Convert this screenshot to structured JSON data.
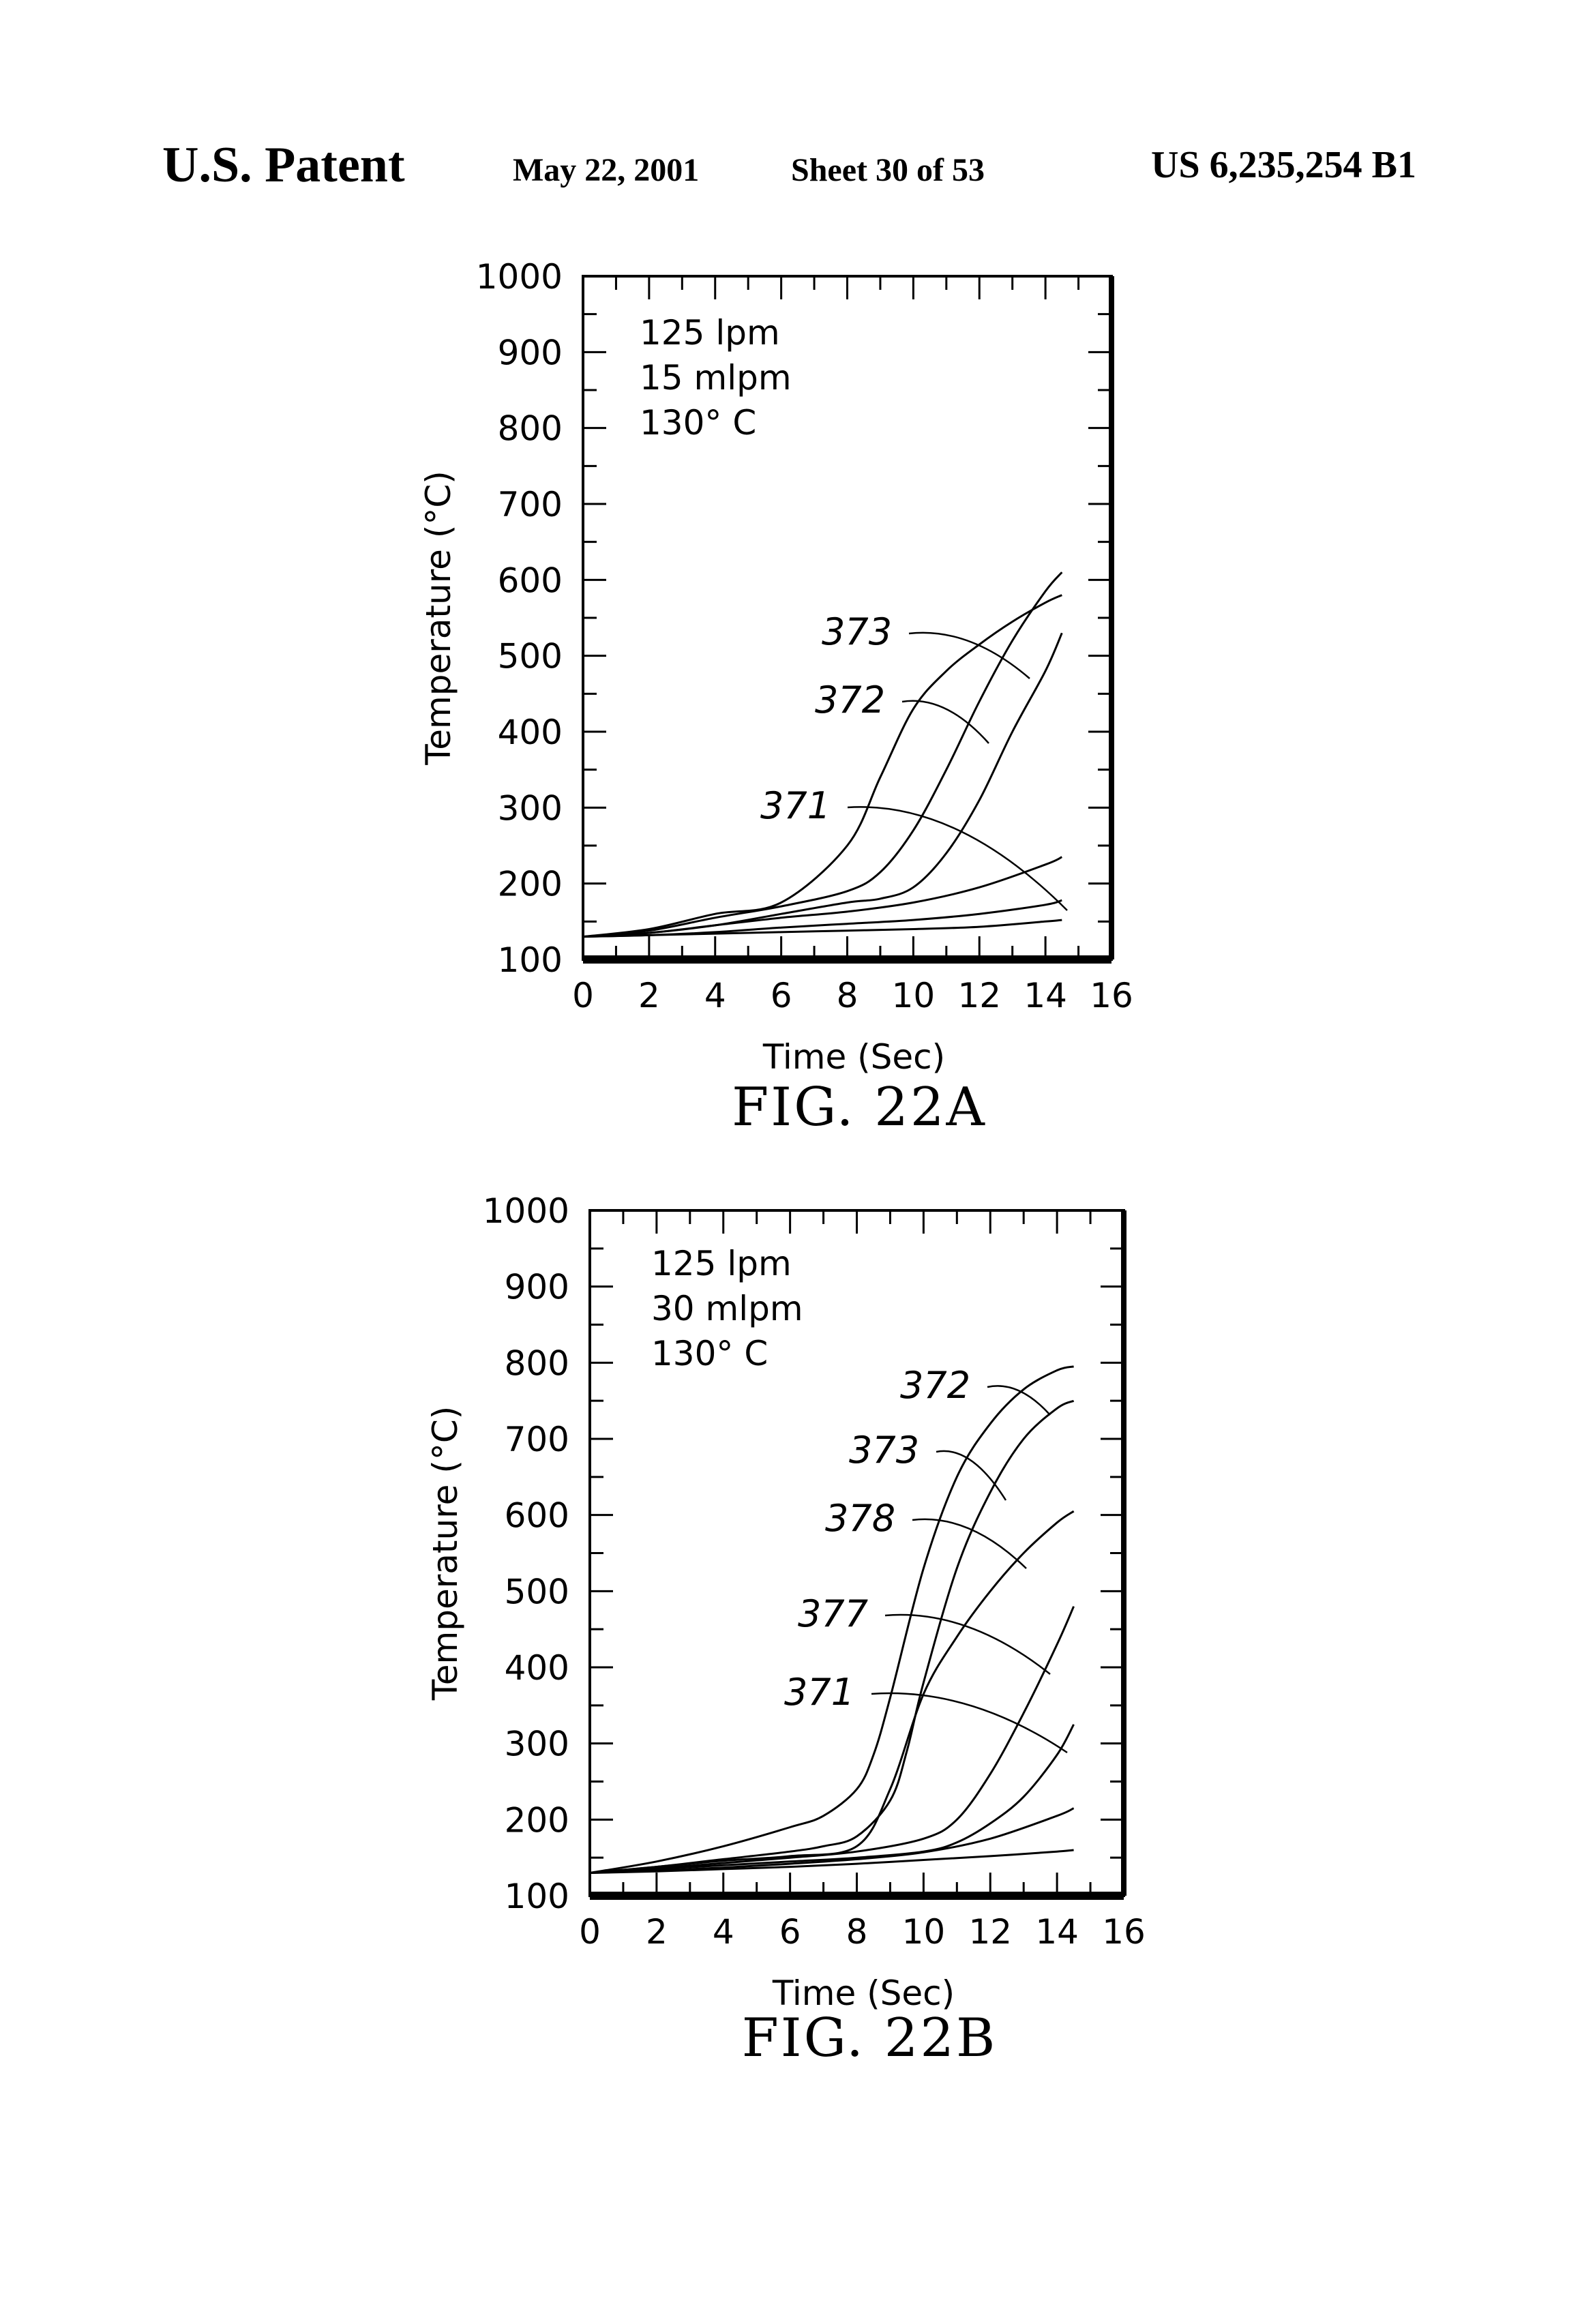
{
  "header": {
    "left": "U.S. Patent",
    "date": "May 22, 2001",
    "sheet": "Sheet 30 of 53",
    "number": "US 6,235,254 B1"
  },
  "chart_data": [
    {
      "type": "line",
      "figure_label": "FIG. 22A",
      "xlabel": "Time (Sec)",
      "ylabel": "Temperature (°C)",
      "xlim": [
        0,
        16
      ],
      "ylim": [
        100,
        1000
      ],
      "xticks": [
        "0",
        "2",
        "4",
        "6",
        "8",
        "10",
        "12",
        "14",
        "16"
      ],
      "yticks": [
        "100",
        "200",
        "300",
        "400",
        "500",
        "600",
        "700",
        "800",
        "900",
        "1000"
      ],
      "annotation_lines": [
        "125 lpm",
        "15 mlpm",
        "130° C"
      ],
      "curve_labels": [
        "373",
        "372",
        "371"
      ],
      "series": [
        {
          "x": [
            0,
            2,
            4,
            6,
            8,
            9,
            10,
            11,
            12,
            13,
            14,
            14.5
          ],
          "y": [
            130,
            140,
            160,
            175,
            250,
            340,
            430,
            480,
            515,
            545,
            570,
            580
          ]
        },
        {
          "x": [
            0,
            2,
            4,
            6,
            8,
            9,
            10,
            11,
            12,
            13,
            14,
            14.5
          ],
          "y": [
            130,
            138,
            155,
            170,
            190,
            215,
            270,
            350,
            440,
            520,
            585,
            610
          ]
        },
        {
          "x": [
            0,
            2,
            4,
            6,
            8,
            9,
            10,
            11,
            12,
            13,
            14,
            14.5
          ],
          "y": [
            130,
            135,
            145,
            160,
            175,
            180,
            195,
            240,
            310,
            400,
            480,
            530
          ]
        },
        {
          "x": [
            0,
            2,
            4,
            6,
            8,
            10,
            12,
            14,
            14.5
          ],
          "y": [
            130,
            135,
            145,
            155,
            163,
            175,
            195,
            225,
            235
          ]
        },
        {
          "x": [
            0,
            2,
            4,
            6,
            8,
            10,
            12,
            14,
            14.5
          ],
          "y": [
            130,
            132,
            136,
            142,
            147,
            152,
            160,
            172,
            178
          ]
        },
        {
          "x": [
            0,
            2,
            4,
            6,
            8,
            10,
            12,
            14,
            14.5
          ],
          "y": [
            130,
            132,
            134,
            136,
            138,
            140,
            143,
            150,
            152
          ]
        }
      ]
    },
    {
      "type": "line",
      "figure_label": "FIG. 22B",
      "xlabel": "Time (Sec)",
      "ylabel": "Temperature (°C)",
      "xlim": [
        0,
        16
      ],
      "ylim": [
        100,
        1000
      ],
      "xticks": [
        "0",
        "2",
        "4",
        "6",
        "8",
        "10",
        "12",
        "14",
        "16"
      ],
      "yticks": [
        "100",
        "200",
        "300",
        "400",
        "500",
        "600",
        "700",
        "800",
        "900",
        "1000"
      ],
      "annotation_lines": [
        "125 lpm",
        "30 mlpm",
        "130° C"
      ],
      "curve_labels": [
        "372",
        "373",
        "378",
        "377",
        "371"
      ],
      "series": [
        {
          "x": [
            0,
            2,
            4,
            6,
            7,
            8,
            8.5,
            9,
            10,
            11,
            12,
            13,
            14,
            14.5
          ],
          "y": [
            130,
            145,
            165,
            190,
            205,
            240,
            285,
            360,
            530,
            650,
            720,
            765,
            790,
            795
          ]
        },
        {
          "x": [
            0,
            2,
            4,
            6,
            7,
            8,
            9,
            9.5,
            10,
            11,
            12,
            13,
            14,
            14.5
          ],
          "y": [
            130,
            138,
            148,
            158,
            165,
            178,
            225,
            290,
            380,
            530,
            630,
            700,
            740,
            750
          ]
        },
        {
          "x": [
            0,
            2,
            4,
            6,
            8,
            9,
            10,
            11,
            12,
            13,
            14,
            14.5
          ],
          "y": [
            130,
            138,
            146,
            152,
            165,
            240,
            365,
            440,
            500,
            550,
            590,
            605
          ]
        },
        {
          "x": [
            0,
            2,
            4,
            6,
            8,
            10,
            11,
            12,
            13,
            14,
            14.5
          ],
          "y": [
            130,
            136,
            143,
            150,
            158,
            175,
            200,
            260,
            340,
            430,
            480
          ]
        },
        {
          "x": [
            0,
            2,
            4,
            6,
            8,
            10,
            11,
            12,
            13,
            14,
            14.5
          ],
          "y": [
            130,
            135,
            140,
            145,
            150,
            158,
            170,
            195,
            230,
            285,
            325
          ]
        },
        {
          "x": [
            0,
            2,
            4,
            6,
            8,
            10,
            12,
            14,
            14.5
          ],
          "y": [
            130,
            133,
            137,
            142,
            148,
            157,
            175,
            205,
            215
          ]
        },
        {
          "x": [
            0,
            2,
            4,
            6,
            8,
            10,
            12,
            14,
            14.5
          ],
          "y": [
            130,
            132,
            135,
            138,
            142,
            147,
            152,
            158,
            160
          ]
        }
      ]
    }
  ]
}
